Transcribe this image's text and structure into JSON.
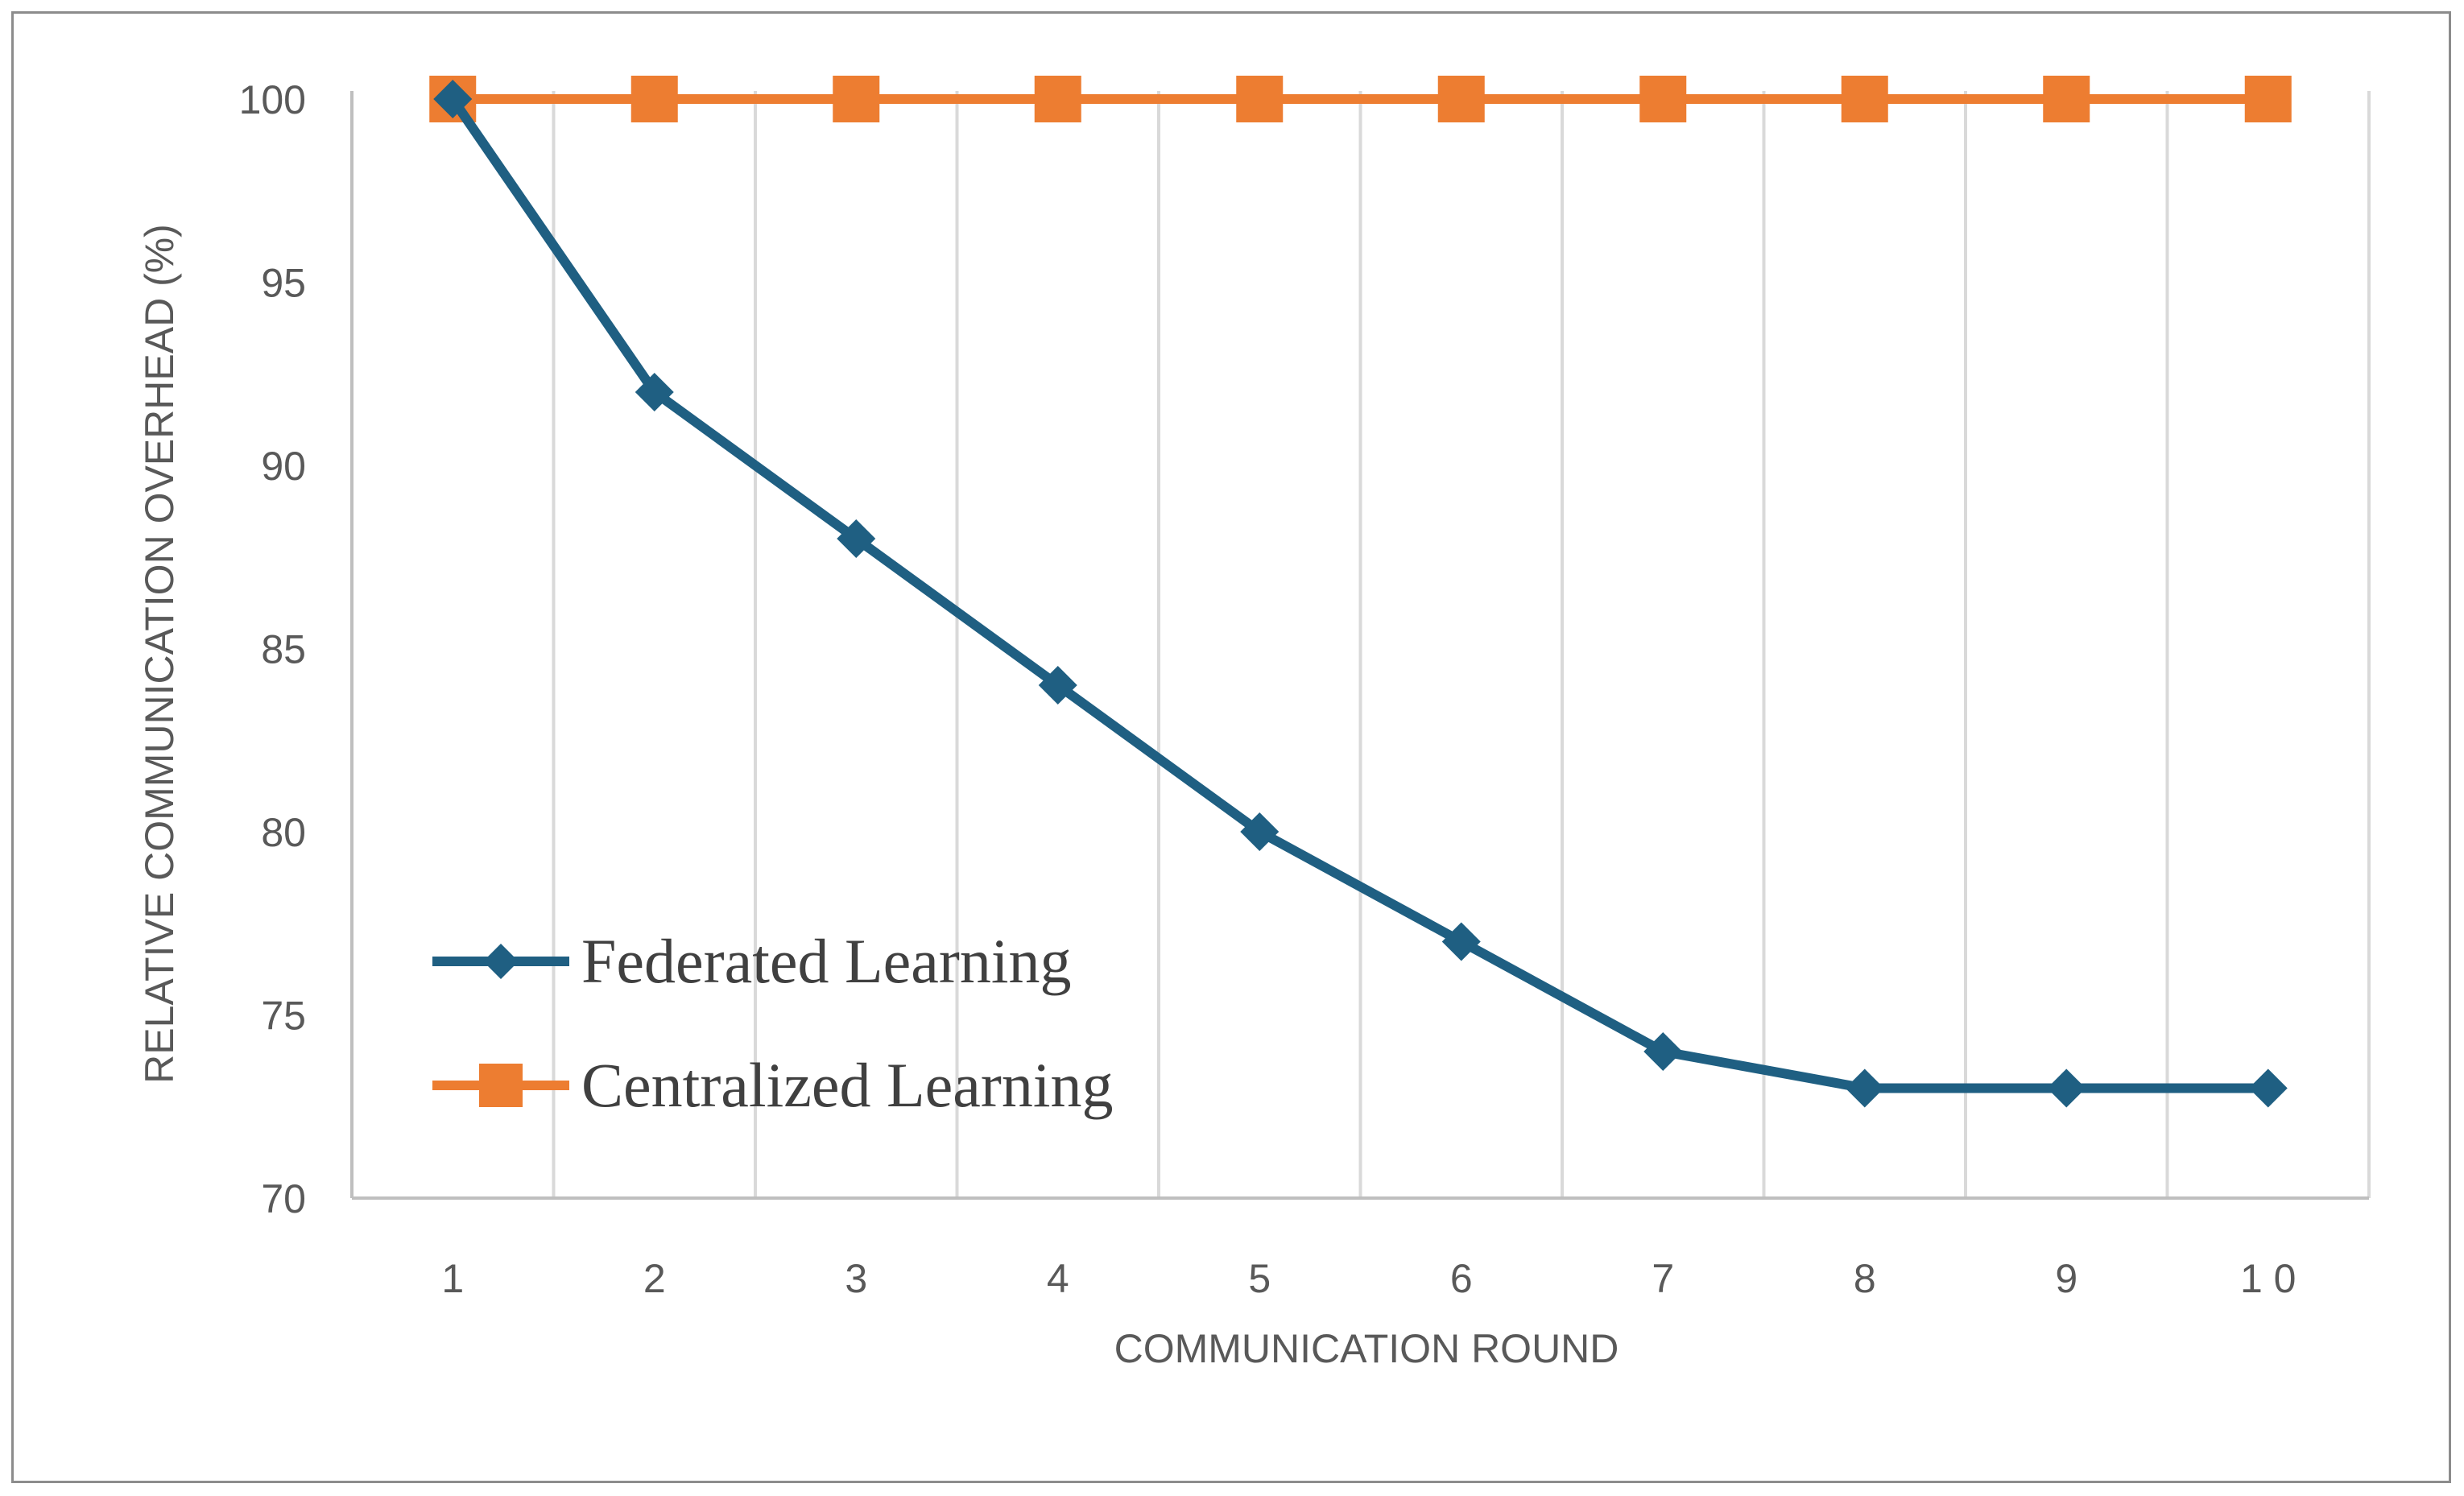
{
  "chart_data": {
    "type": "line",
    "title": "",
    "xlabel": "COMMUNICATION ROUND",
    "ylabel": "RELATIVE COMMUNICATION OVERHEAD (%)",
    "categories": [
      "1",
      "2",
      "3",
      "4",
      "5",
      "6",
      "7",
      "8",
      "9",
      "1 0"
    ],
    "ylim": [
      70,
      100
    ],
    "yticks": [
      70,
      75,
      80,
      85,
      90,
      95,
      100
    ],
    "grid": "vertical",
    "legend_position": "lower-left",
    "series": [
      {
        "name": "Federated Learning",
        "values": [
          100,
          92,
          88,
          84,
          80,
          77,
          74,
          73,
          73,
          73
        ],
        "color": "#1f5f82",
        "marker": "diamond"
      },
      {
        "name": "Centralized Learning",
        "values": [
          100,
          100,
          100,
          100,
          100,
          100,
          100,
          100,
          100,
          100
        ],
        "color": "#ed7d31",
        "marker": "square"
      }
    ],
    "colors": {
      "axis": "#bfbfbf",
      "grid": "#d9d9d9",
      "text": "#595959"
    }
  }
}
